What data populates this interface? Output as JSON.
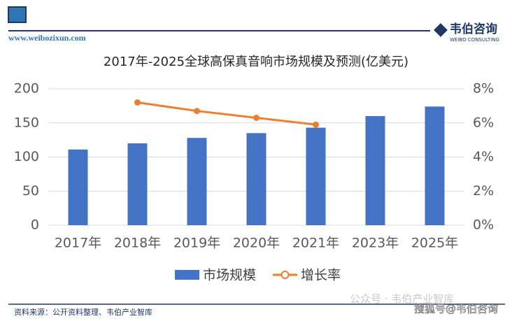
{
  "header": {
    "url": "www.weibozixun.com",
    "logo": "韦伯咨询",
    "logo_sub": "WEIBO CONSULTING"
  },
  "footer": {
    "source": "资料来源：公开资料整理、韦伯产业智库",
    "watermark1": "公众号 · 韦伯产业智库",
    "watermark2": "搜狐号@韦伯咨询"
  },
  "chart_data": {
    "type": "bar",
    "title": "2017年-2025全球高保真音响市场规模及预测(亿美元)",
    "categories": [
      "2017年",
      "2018年",
      "2019年",
      "2020年",
      "2021年",
      "2023年",
      "2025年"
    ],
    "series": [
      {
        "name": "市场规模",
        "type": "bar",
        "color": "#4472c4",
        "values": [
          111,
          120,
          128,
          135,
          143,
          160,
          174
        ]
      },
      {
        "name": "增长率",
        "type": "line",
        "axis": "y2",
        "color": "#ed7d31",
        "values": [
          null,
          7.2,
          6.7,
          6.3,
          5.9,
          null,
          null
        ]
      }
    ],
    "ylim": [
      0,
      200
    ],
    "yticks": [
      0,
      50,
      100,
      150,
      200
    ],
    "y2lim": [
      0,
      8
    ],
    "y2ticks": [
      {
        "value": 0,
        "label": "0%"
      },
      {
        "value": 2,
        "label": "2%"
      },
      {
        "value": 4,
        "label": "4%"
      },
      {
        "value": 6,
        "label": "6%"
      },
      {
        "value": 8,
        "label": "8%"
      }
    ],
    "grid": true,
    "legend": "bottom"
  }
}
